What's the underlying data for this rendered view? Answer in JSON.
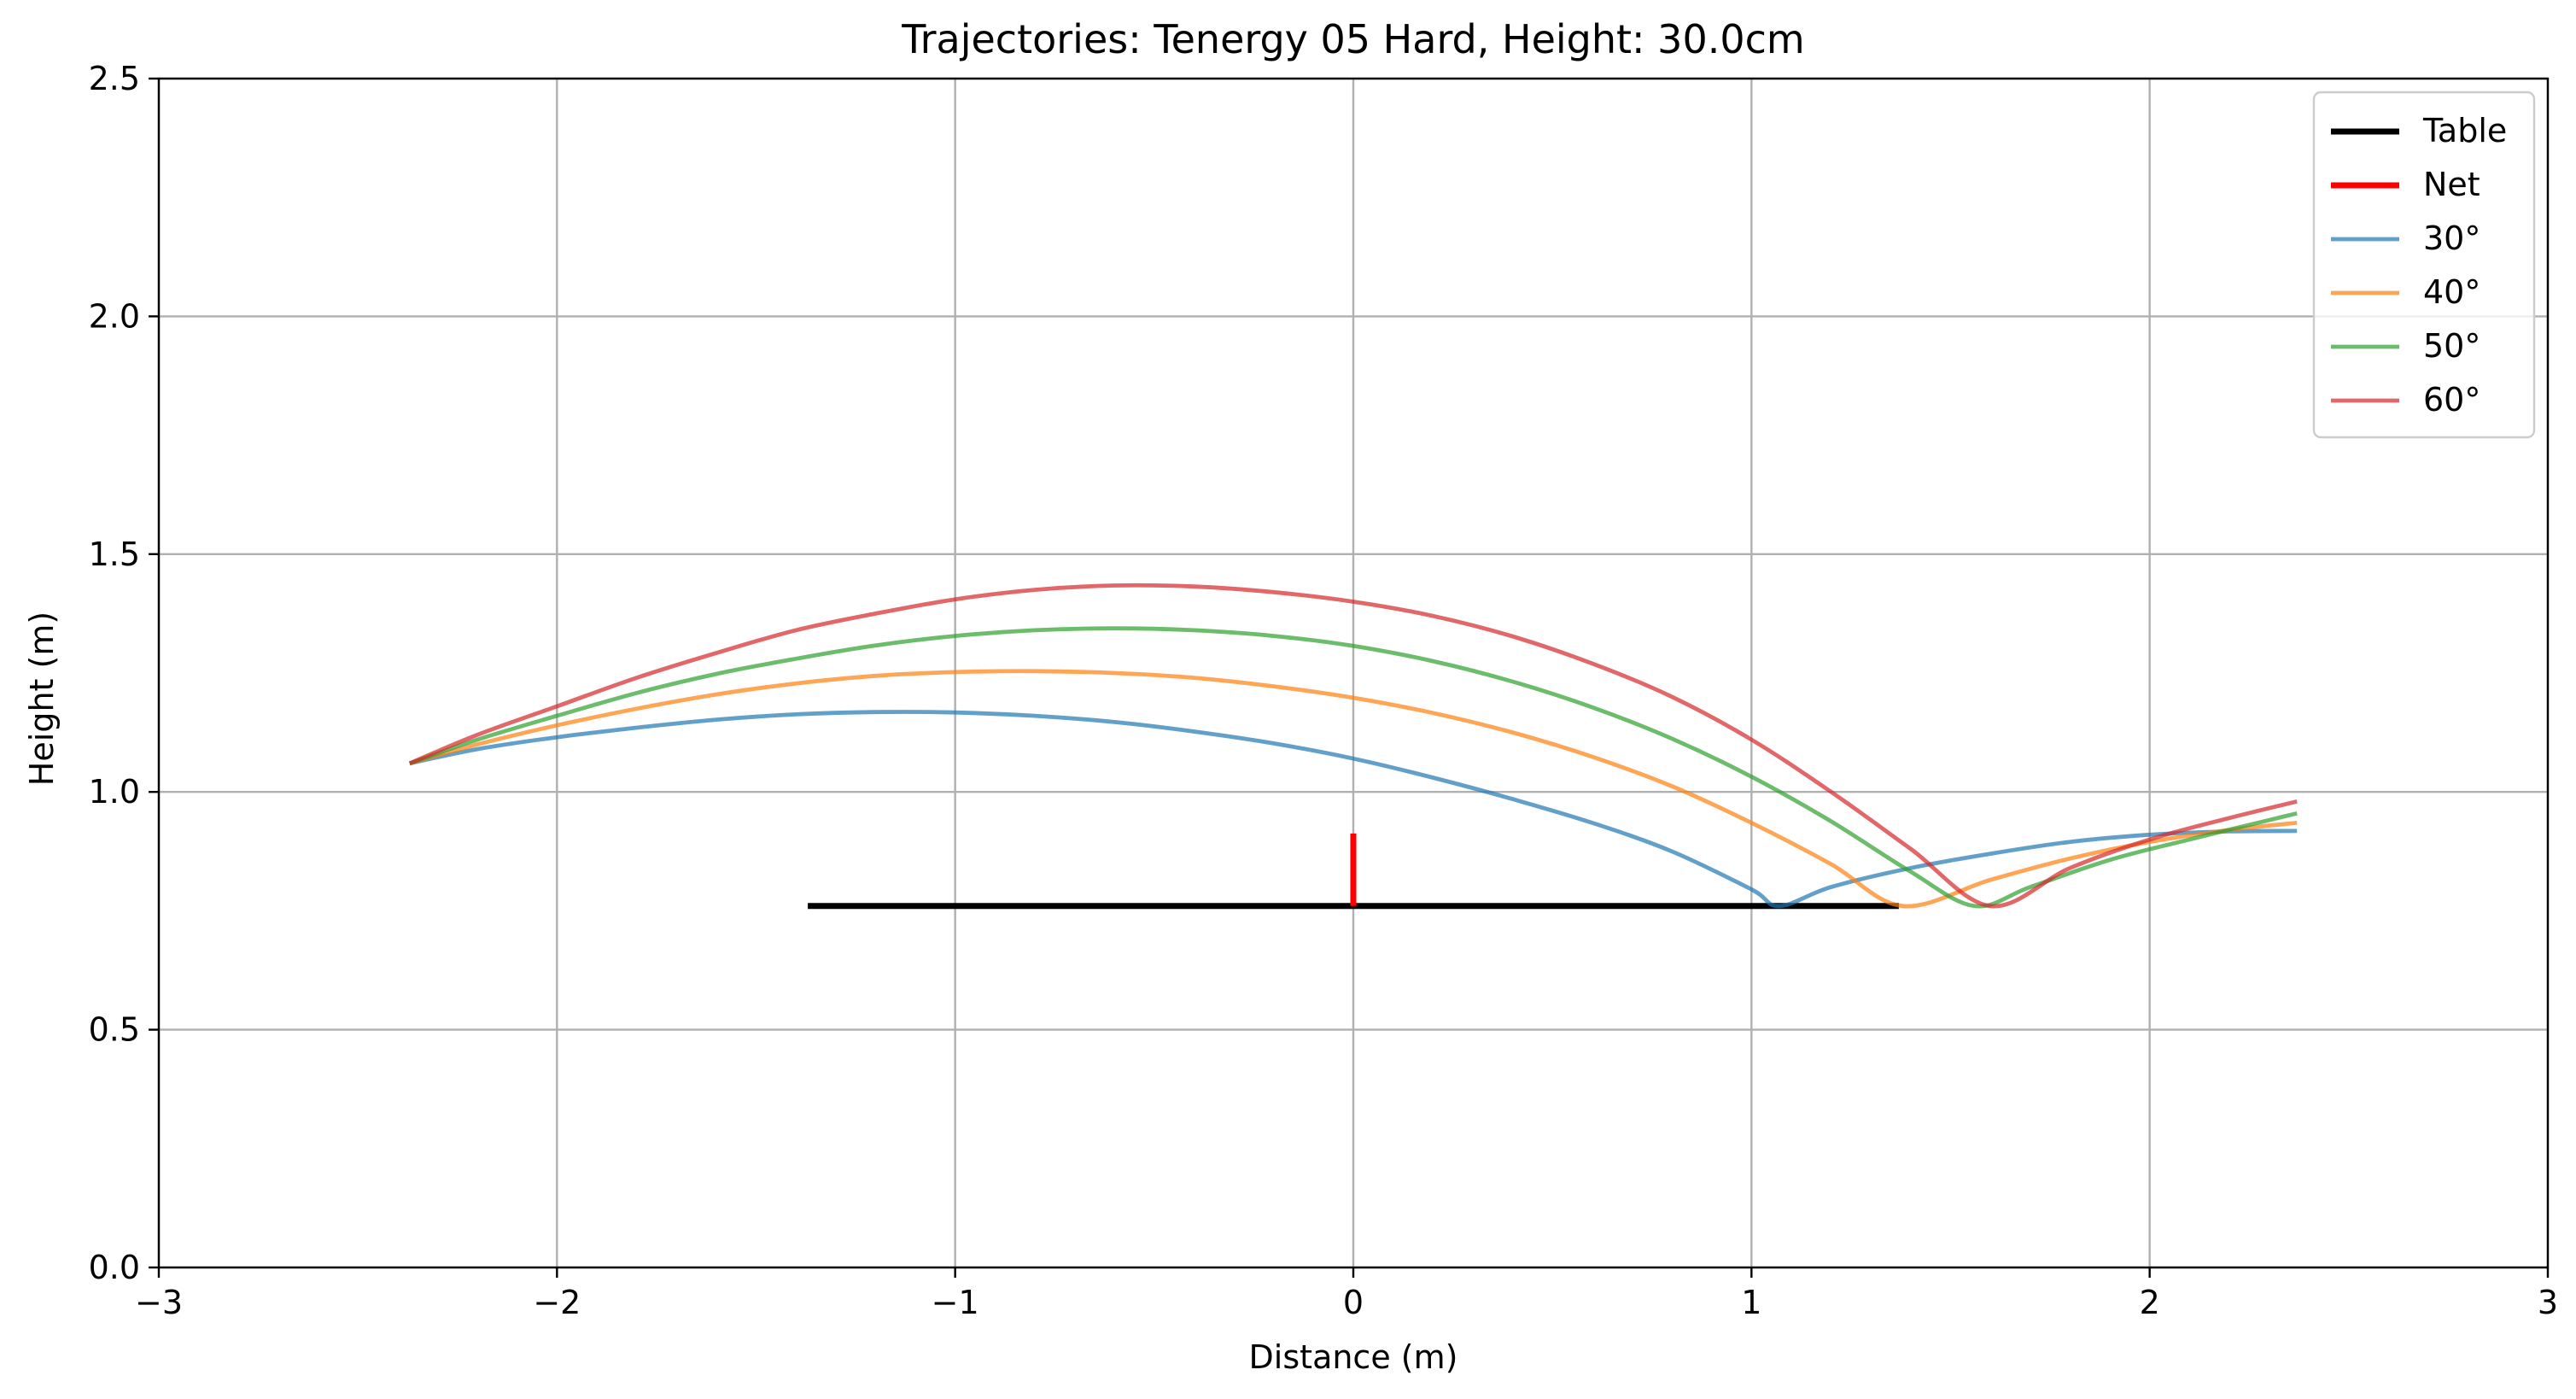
{
  "chart_data": {
    "type": "line",
    "title": "Trajectories: Tenergy 05 Hard, Height: 30.0cm",
    "xlabel": "Distance (m)",
    "ylabel": "Height (m)",
    "xlim": [
      -3,
      3
    ],
    "ylim": [
      0,
      2.5
    ],
    "xticks": [
      -3,
      -2,
      -1,
      0,
      1,
      2,
      3
    ],
    "xtick_labels": [
      "−3",
      "−2",
      "−1",
      "0",
      "1",
      "2",
      "3"
    ],
    "yticks": [
      0,
      0.5,
      1,
      1.5,
      2,
      2.5
    ],
    "ytick_labels": [
      "0.0",
      "0.5",
      "1.0",
      "1.5",
      "2.0",
      "2.5"
    ],
    "grid": true,
    "legend_position": "top-right",
    "series": [
      {
        "name": "Table",
        "color": "#000000",
        "x": [
          -1.37,
          1.37
        ],
        "y": [
          0.76,
          0.76
        ]
      },
      {
        "name": "Net",
        "color": "#ff0000",
        "x": [
          0,
          0
        ],
        "y": [
          0.76,
          0.9125
        ]
      },
      {
        "name": "30°",
        "color": "#1f77b4",
        "x": [
          -2.37,
          -2.2,
          -2.0,
          -1.8,
          -1.6,
          -1.4,
          -1.2,
          -1.0,
          -0.8,
          -0.6,
          -0.4,
          -0.2,
          0.0,
          0.2,
          0.4,
          0.6,
          0.8,
          1.0,
          1.07,
          1.2,
          1.4,
          1.6,
          1.8,
          2.0,
          2.2,
          2.37
        ],
        "y": [
          1.06,
          1.09,
          1.115,
          1.135,
          1.152,
          1.163,
          1.168,
          1.167,
          1.16,
          1.147,
          1.127,
          1.102,
          1.07,
          1.03,
          0.985,
          0.935,
          0.875,
          0.795,
          0.76,
          0.8,
          0.84,
          0.87,
          0.895,
          0.91,
          0.917,
          0.918
        ]
      },
      {
        "name": "40°",
        "color": "#ff7f0e",
        "x": [
          -2.37,
          -2.2,
          -2.0,
          -1.8,
          -1.6,
          -1.4,
          -1.2,
          -1.0,
          -0.8,
          -0.6,
          -0.4,
          -0.2,
          0.0,
          0.2,
          0.4,
          0.6,
          0.8,
          1.0,
          1.2,
          1.38,
          1.6,
          1.8,
          2.0,
          2.2,
          2.37
        ],
        "y": [
          1.06,
          1.1,
          1.14,
          1.175,
          1.205,
          1.228,
          1.244,
          1.252,
          1.254,
          1.25,
          1.24,
          1.222,
          1.198,
          1.166,
          1.125,
          1.074,
          1.012,
          0.935,
          0.848,
          0.76,
          0.815,
          0.86,
          0.895,
          0.92,
          0.935
        ]
      },
      {
        "name": "50°",
        "color": "#2ca02c",
        "x": [
          -2.37,
          -2.2,
          -2.0,
          -1.8,
          -1.6,
          -1.4,
          -1.2,
          -1.0,
          -0.8,
          -0.6,
          -0.4,
          -0.2,
          0.0,
          0.2,
          0.4,
          0.6,
          0.8,
          1.0,
          1.2,
          1.4,
          1.56,
          1.7,
          1.9,
          2.1,
          2.37
        ],
        "y": [
          1.06,
          1.11,
          1.16,
          1.208,
          1.248,
          1.28,
          1.308,
          1.328,
          1.34,
          1.344,
          1.34,
          1.328,
          1.307,
          1.275,
          1.232,
          1.178,
          1.112,
          1.032,
          0.938,
          0.832,
          0.76,
          0.8,
          0.857,
          0.9,
          0.955
        ]
      },
      {
        "name": "60°",
        "color": "#d62728",
        "x": [
          -2.37,
          -2.2,
          -2.0,
          -1.8,
          -1.6,
          -1.4,
          -1.2,
          -1.0,
          -0.8,
          -0.6,
          -0.4,
          -0.2,
          0.0,
          0.2,
          0.4,
          0.6,
          0.8,
          1.0,
          1.2,
          1.4,
          1.6,
          1.8,
          2.0,
          2.2,
          2.37
        ],
        "y": [
          1.06,
          1.12,
          1.18,
          1.24,
          1.292,
          1.34,
          1.375,
          1.405,
          1.425,
          1.434,
          1.432,
          1.42,
          1.4,
          1.37,
          1.327,
          1.27,
          1.2,
          1.11,
          1.0,
          0.88,
          0.76,
          0.84,
          0.9,
          0.945,
          0.98
        ]
      }
    ]
  }
}
